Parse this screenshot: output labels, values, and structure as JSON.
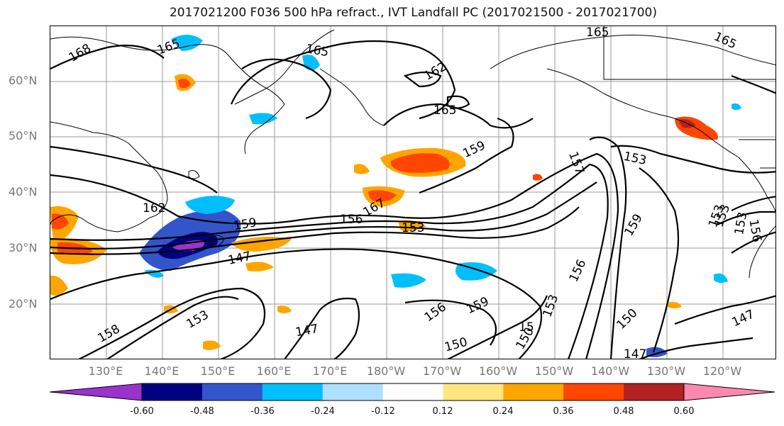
{
  "title": "2017021200 F036 500 hPa refract., IVT Landfall PC (2017021500 - 2017021700)",
  "lat_labels": [
    "60°N",
    "50°N",
    "40°N",
    "30°N",
    "20°N"
  ],
  "lon_labels": [
    "130°E",
    "140°E",
    "150°E",
    "160°E",
    "170°E",
    "180°W",
    "170°W",
    "160°W",
    "150°W",
    "140°W",
    "130°W",
    "120°W"
  ],
  "contour_labels": [
    "168",
    "165",
    "165",
    "165",
    "162",
    "165",
    "165",
    "159",
    "153",
    "157",
    "162",
    "167",
    "159",
    "156",
    "153",
    "159",
    "147",
    "153",
    "158",
    "153",
    "147",
    "156",
    "159",
    "150",
    "156",
    "15",
    "150",
    "153",
    "150",
    "147",
    "153",
    "153",
    "156",
    "147"
  ],
  "colorbar": {
    "ticks": [
      "-0.60",
      "-0.48",
      "-0.36",
      "-0.24",
      "-0.12",
      "0.12",
      "0.24",
      "0.36",
      "0.48",
      "0.60"
    ],
    "colors": [
      "#9933cc",
      "#000080",
      "#3355cc",
      "#00bfff",
      "#aee0ff",
      "#ffffff",
      "#ffe680",
      "#ffa500",
      "#ff4500",
      "#b22222",
      "#ff88b0"
    ]
  }
}
